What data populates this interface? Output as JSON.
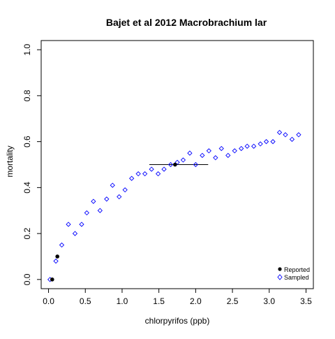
{
  "chart_data": {
    "type": "scatter",
    "title": "Bajet et al 2012 Macrobrachium lar",
    "xlabel": "chlorpyrifos (ppb)",
    "ylabel": "mortality",
    "xlim": [
      -0.1,
      3.6
    ],
    "ylim": [
      -0.04,
      1.04
    ],
    "x_ticks": [
      0.0,
      0.5,
      1.0,
      1.5,
      2.0,
      2.5,
      3.0,
      3.5
    ],
    "x_tick_labels": [
      "0.0",
      "0.5",
      "1.0",
      "1.5",
      "2.0",
      "2.5",
      "3.0",
      "3.5"
    ],
    "y_ticks": [
      0.0,
      0.2,
      0.4,
      0.6,
      0.8,
      1.0
    ],
    "y_tick_labels": [
      "0.0",
      "0.2",
      "0.4",
      "0.6",
      "0.8",
      "1.0"
    ],
    "grid": false,
    "legend_position": "bottom-right",
    "series": [
      {
        "name": "Reported",
        "marker": "filled-circle",
        "color": "#000000",
        "x": [
          0.05,
          0.12,
          1.72
        ],
        "y": [
          0.0,
          0.1,
          0.5
        ]
      },
      {
        "name": "Sampled",
        "marker": "open-diamond",
        "color": "#0000ff",
        "x": [
          0.02,
          0.1,
          0.18,
          0.27,
          0.36,
          0.45,
          0.52,
          0.61,
          0.7,
          0.79,
          0.87,
          0.96,
          1.04,
          1.13,
          1.22,
          1.31,
          1.4,
          1.49,
          1.57,
          1.66,
          1.75,
          1.83,
          1.92,
          2.0,
          2.09,
          2.18,
          2.27,
          2.35,
          2.44,
          2.53,
          2.62,
          2.7,
          2.79,
          2.88,
          2.96,
          3.05,
          3.14,
          3.22,
          3.31,
          3.4
        ],
        "y": [
          0.0,
          0.08,
          0.15,
          0.24,
          0.2,
          0.24,
          0.29,
          0.34,
          0.3,
          0.35,
          0.41,
          0.36,
          0.39,
          0.44,
          0.46,
          0.46,
          0.48,
          0.46,
          0.48,
          0.5,
          0.51,
          0.52,
          0.55,
          0.5,
          0.54,
          0.56,
          0.53,
          0.57,
          0.54,
          0.56,
          0.57,
          0.58,
          0.58,
          0.59,
          0.6,
          0.6,
          0.64,
          0.63,
          0.61,
          0.63
        ]
      }
    ],
    "error_bars": [
      {
        "y": 0.5,
        "x_low": 1.37,
        "x_high": 2.17
      }
    ]
  }
}
